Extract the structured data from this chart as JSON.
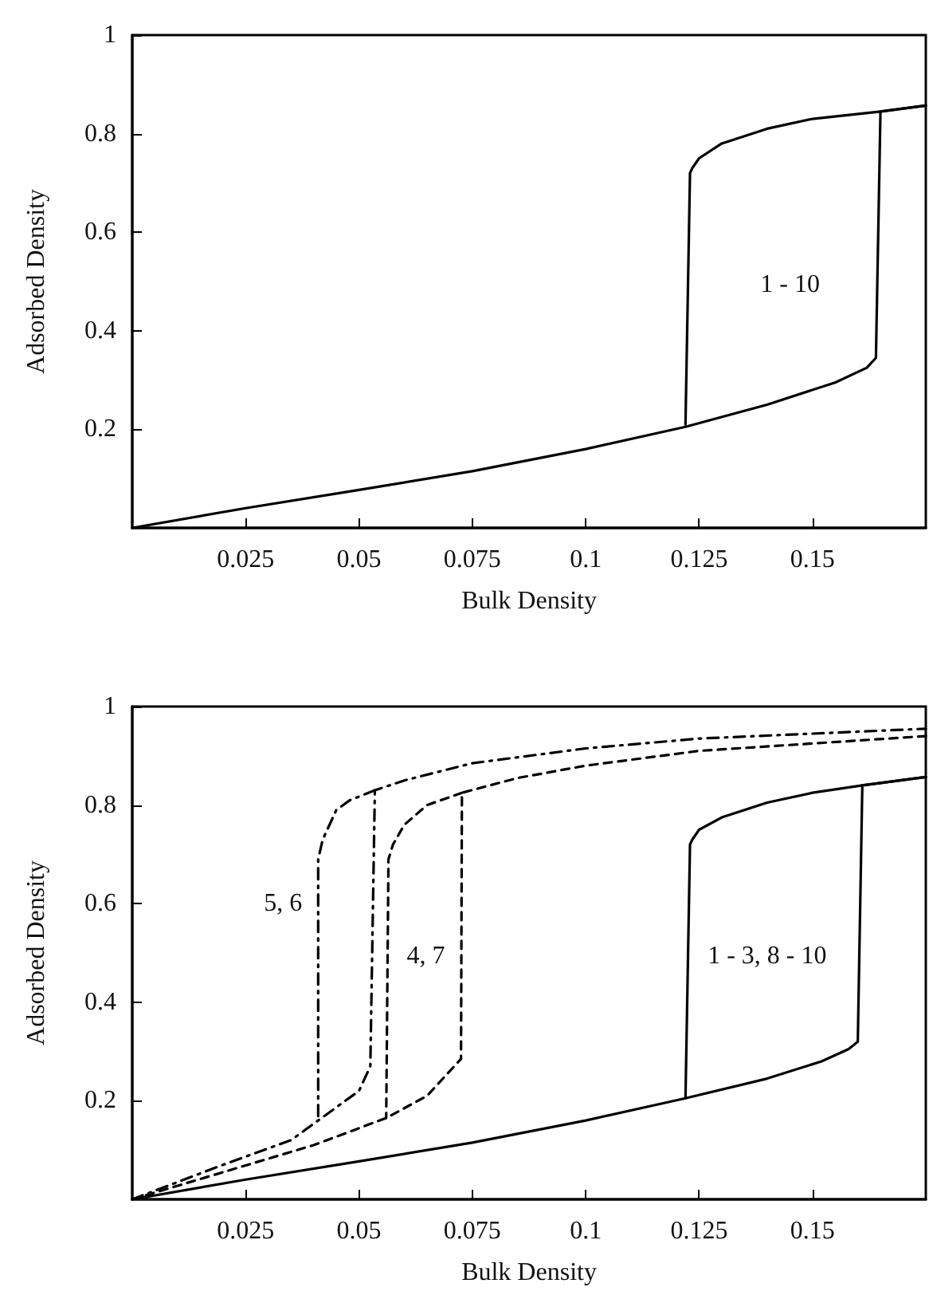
{
  "chart_data": [
    {
      "type": "line",
      "xlabel": "Bulk Density",
      "ylabel": "Adsorbed Density",
      "xlim": [
        0,
        0.175
      ],
      "ylim": [
        0,
        1
      ],
      "xticks": [
        0.025,
        0.05,
        0.075,
        0.1,
        0.125,
        0.15
      ],
      "yticks": [
        0.2,
        0.4,
        0.6,
        0.8,
        1
      ],
      "marker": "none",
      "annotations": [
        "1 - 10"
      ],
      "series": [
        {
          "color": "#000000",
          "line_style": "solid",
          "x": [
            0,
            0.025,
            0.05,
            0.075,
            0.1,
            0.122,
            0.14,
            0.155,
            0.162,
            0.164,
            0.165,
            0.175
          ],
          "values": [
            0,
            0.04,
            0.077,
            0.115,
            0.16,
            0.205,
            0.25,
            0.295,
            0.325,
            0.345,
            0.845,
            0.857
          ]
        },
        {
          "color": "#000000",
          "line_style": "solid",
          "x": [
            0.175,
            0.165,
            0.15,
            0.14,
            0.13,
            0.125,
            0.1235,
            0.123,
            0.122
          ],
          "values": [
            0.857,
            0.845,
            0.83,
            0.81,
            0.78,
            0.75,
            0.73,
            0.72,
            0.21
          ]
        }
      ]
    },
    {
      "type": "line",
      "xlabel": "Bulk Density",
      "ylabel": "Adsorbed Density",
      "xlim": [
        0,
        0.175
      ],
      "ylim": [
        0,
        1
      ],
      "xticks": [
        0.025,
        0.05,
        0.075,
        0.1,
        0.125,
        0.15
      ],
      "yticks": [
        0.2,
        0.4,
        0.6,
        0.8,
        1
      ],
      "marker": "none",
      "annotations": [
        "5, 6",
        "4, 7",
        "1 - 3, 8 - 10"
      ],
      "series": [
        {
          "color": "#000000",
          "line_style": "solid",
          "x": [
            0,
            0.025,
            0.05,
            0.075,
            0.1,
            0.122,
            0.14,
            0.152,
            0.158,
            0.16,
            0.161,
            0.175
          ],
          "values": [
            0,
            0.04,
            0.077,
            0.115,
            0.16,
            0.205,
            0.245,
            0.28,
            0.305,
            0.32,
            0.84,
            0.857
          ]
        },
        {
          "color": "#000000",
          "line_style": "solid",
          "x": [
            0.175,
            0.161,
            0.15,
            0.14,
            0.13,
            0.125,
            0.1235,
            0.123,
            0.122
          ],
          "values": [
            0.857,
            0.84,
            0.825,
            0.805,
            0.775,
            0.75,
            0.73,
            0.72,
            0.205
          ]
        },
        {
          "color": "#000000",
          "line_style": "dotted",
          "x": [
            0,
            0.02,
            0.035,
            0.041,
            0.05,
            0.0525,
            0.0535,
            0.06,
            0.075,
            0.1,
            0.125,
            0.15,
            0.175
          ],
          "values": [
            0,
            0.07,
            0.12,
            0.16,
            0.22,
            0.27,
            0.83,
            0.85,
            0.885,
            0.915,
            0.935,
            0.945,
            0.955
          ]
        },
        {
          "color": "#000000",
          "line_style": "dotted",
          "x": [
            0.0535,
            0.048,
            0.045,
            0.042,
            0.041,
            0.041
          ],
          "values": [
            0.83,
            0.81,
            0.79,
            0.73,
            0.69,
            0.16
          ]
        },
        {
          "color": "#000000",
          "line_style": "dashed",
          "x": [
            0,
            0.02,
            0.04,
            0.056,
            0.065,
            0.07,
            0.0725,
            0.0727,
            0.085,
            0.1,
            0.125,
            0.15,
            0.175
          ],
          "values": [
            0,
            0.055,
            0.11,
            0.165,
            0.21,
            0.26,
            0.285,
            0.825,
            0.855,
            0.88,
            0.91,
            0.925,
            0.94
          ]
        },
        {
          "color": "#000000",
          "line_style": "dashed",
          "x": [
            0.0727,
            0.065,
            0.06,
            0.0575,
            0.0565,
            0.056
          ],
          "values": [
            0.825,
            0.8,
            0.76,
            0.72,
            0.69,
            0.165
          ]
        }
      ]
    }
  ]
}
